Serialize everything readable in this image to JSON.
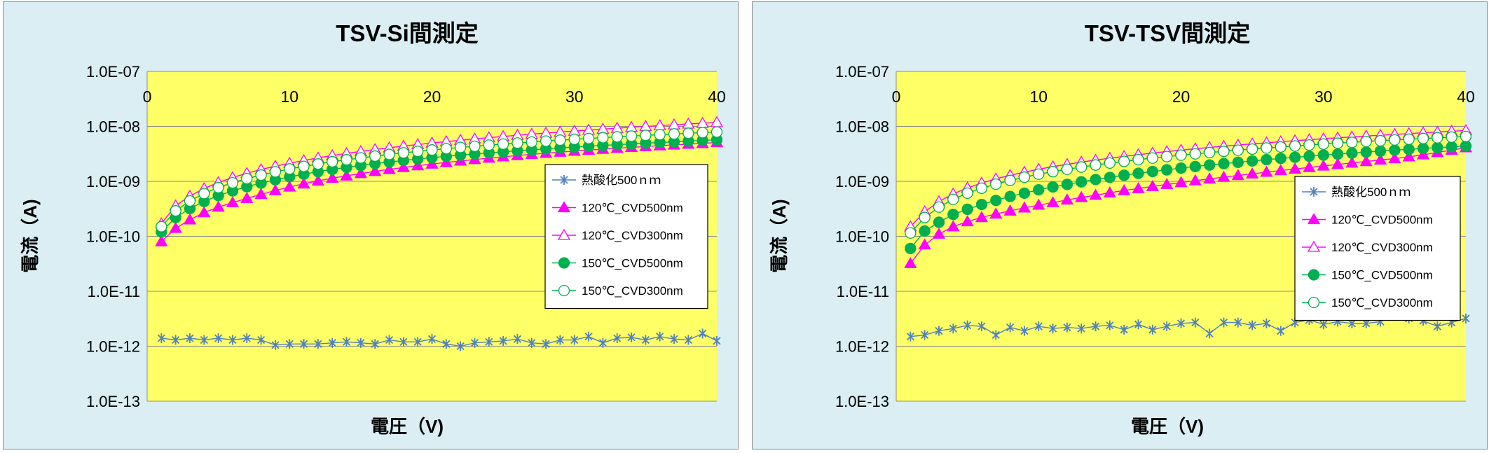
{
  "chart_data": [
    {
      "type": "scatter",
      "title": "TSV-Si間測定",
      "xlabel": "電圧（V)",
      "ylabel": "電流（A)",
      "xlim": [
        0,
        40
      ],
      "x_ticks": [
        "0",
        "10",
        "20",
        "30",
        "40"
      ],
      "ylim": [
        1e-13,
        1e-07
      ],
      "y_scale": "log",
      "y_ticks": [
        "1.0E-07",
        "1.0E-08",
        "1.0E-09",
        "1.0E-10",
        "1.0E-11",
        "1.0E-12",
        "1.0E-13"
      ],
      "grid": "horizontal",
      "legend_position": "right",
      "plot_background": "#ffff66",
      "panel_background": "#daeef3",
      "x": [
        1,
        2,
        3,
        4,
        5,
        6,
        7,
        8,
        9,
        10,
        11,
        12,
        13,
        14,
        15,
        16,
        17,
        18,
        19,
        20,
        21,
        22,
        23,
        24,
        25,
        26,
        27,
        28,
        29,
        30,
        31,
        32,
        33,
        34,
        35,
        36,
        37,
        38,
        39,
        40
      ],
      "series": [
        {
          "name": "熱酸化500ｎｍ",
          "color": "#4f81bd",
          "marker": "asterisk",
          "values": [
            1.4e-12,
            1.3e-12,
            1.4e-12,
            1.3e-12,
            1.4e-12,
            1.3e-12,
            1.4e-12,
            1.3e-12,
            1.05e-12,
            1.1e-12,
            1.1e-12,
            1.1e-12,
            1.15e-12,
            1.2e-12,
            1.15e-12,
            1.1e-12,
            1.3e-12,
            1.2e-12,
            1.2e-12,
            1.35e-12,
            1.1e-12,
            1e-12,
            1.15e-12,
            1.2e-12,
            1.25e-12,
            1.35e-12,
            1.15e-12,
            1.1e-12,
            1.3e-12,
            1.3e-12,
            1.5e-12,
            1.15e-12,
            1.4e-12,
            1.45e-12,
            1.3e-12,
            1.5e-12,
            1.35e-12,
            1.3e-12,
            1.7e-12,
            1.25e-12
          ]
        },
        {
          "name": "120℃_CVD500nm",
          "color": "#ff00ff",
          "marker": "triangle-filled",
          "values": [
            8e-11,
            1.4e-10,
            2e-10,
            2.7e-10,
            3.4e-10,
            4.1e-10,
            4.9e-10,
            5.8e-10,
            6.8e-10,
            7.9e-10,
            9e-10,
            1.02e-09,
            1.14e-09,
            1.26e-09,
            1.39e-09,
            1.52e-09,
            1.65e-09,
            1.79e-09,
            1.93e-09,
            2.07e-09,
            2.21e-09,
            2.35e-09,
            2.5e-09,
            2.65e-09,
            2.8e-09,
            2.95e-09,
            3.1e-09,
            3.25e-09,
            3.4e-09,
            3.55e-09,
            3.7e-09,
            3.85e-09,
            4e-09,
            4.15e-09,
            4.3e-09,
            4.45e-09,
            4.6e-09,
            4.75e-09,
            4.9e-09,
            5.1e-09
          ]
        },
        {
          "name": "120℃_CVD300nm",
          "color": "#ff00ff",
          "marker": "triangle-open",
          "values": [
            1.7e-10,
            3.6e-10,
            5.4e-10,
            7.4e-10,
            9.5e-10,
            1.17e-09,
            1.4e-09,
            1.64e-09,
            1.89e-09,
            2.14e-09,
            2.4e-09,
            2.67e-09,
            2.94e-09,
            3.22e-09,
            3.5e-09,
            3.79e-09,
            4.08e-09,
            4.38e-09,
            4.68e-09,
            4.98e-09,
            5.29e-09,
            5.6e-09,
            5.92e-09,
            6.24e-09,
            6.56e-09,
            6.89e-09,
            7.22e-09,
            7.55e-09,
            7.89e-09,
            8.23e-09,
            8.57e-09,
            8.92e-09,
            9.27e-09,
            9.62e-09,
            9.98e-09,
            1.034e-08,
            1.07e-08,
            1.107e-08,
            1.144e-08,
            1.18e-08
          ]
        },
        {
          "name": "150℃_CVD500nm",
          "color": "#00b050",
          "marker": "circle-filled",
          "values": [
            1.2e-10,
            2.2e-10,
            3.2e-10,
            4.3e-10,
            5.5e-10,
            6.7e-10,
            8e-10,
            9.3e-10,
            1.07e-09,
            1.21e-09,
            1.35e-09,
            1.5e-09,
            1.65e-09,
            1.8e-09,
            1.95e-09,
            2.1e-09,
            2.25e-09,
            2.4e-09,
            2.55e-09,
            2.7e-09,
            2.85e-09,
            3e-09,
            3.15e-09,
            3.3e-09,
            3.45e-09,
            3.6e-09,
            3.75e-09,
            3.9e-09,
            4.05e-09,
            4.2e-09,
            4.35e-09,
            4.5e-09,
            4.65e-09,
            4.8e-09,
            4.95e-09,
            5.1e-09,
            5.25e-09,
            5.4e-09,
            5.55e-09,
            5.7e-09
          ]
        },
        {
          "name": "150℃_CVD300nm",
          "color": "#00b050",
          "marker": "circle-open",
          "values": [
            1.5e-10,
            2.9e-10,
            4.4e-10,
            6e-10,
            7.7e-10,
            9.4e-10,
            1.12e-09,
            1.3e-09,
            1.49e-09,
            1.68e-09,
            1.87e-09,
            2.07e-09,
            2.27e-09,
            2.47e-09,
            2.67e-09,
            2.88e-09,
            3.09e-09,
            3.3e-09,
            3.51e-09,
            3.72e-09,
            3.93e-09,
            4.14e-09,
            4.35e-09,
            4.56e-09,
            4.77e-09,
            4.98e-09,
            5.19e-09,
            5.4e-09,
            5.61e-09,
            5.82e-09,
            6.03e-09,
            6.24e-09,
            6.45e-09,
            6.66e-09,
            6.87e-09,
            7.08e-09,
            7.29e-09,
            7.5e-09,
            7.71e-09,
            7.9e-09
          ]
        }
      ]
    },
    {
      "type": "scatter",
      "title": "TSV-TSV間測定",
      "xlabel": "電圧（V)",
      "ylabel": "電流（A)",
      "xlim": [
        0,
        40
      ],
      "x_ticks": [
        "0",
        "10",
        "20",
        "30",
        "40"
      ],
      "ylim": [
        1e-13,
        1e-07
      ],
      "y_scale": "log",
      "y_ticks": [
        "1.0E-07",
        "1.0E-08",
        "1.0E-09",
        "1.0E-10",
        "1.0E-11",
        "1.0E-12",
        "1.0E-13"
      ],
      "grid": "horizontal",
      "legend_position": "right",
      "plot_background": "#ffff66",
      "panel_background": "#daeef3",
      "x": [
        1,
        2,
        3,
        4,
        5,
        6,
        7,
        8,
        9,
        10,
        11,
        12,
        13,
        14,
        15,
        16,
        17,
        18,
        19,
        20,
        21,
        22,
        23,
        24,
        25,
        26,
        27,
        28,
        29,
        30,
        31,
        32,
        33,
        34,
        35,
        36,
        37,
        38,
        39,
        40
      ],
      "series": [
        {
          "name": "熱酸化500ｎｍ",
          "color": "#4f81bd",
          "marker": "asterisk",
          "values": [
            1.5e-12,
            1.6e-12,
            1.9e-12,
            2.1e-12,
            2.4e-12,
            2.3e-12,
            1.6e-12,
            2.2e-12,
            1.9e-12,
            2.3e-12,
            2.1e-12,
            2.2e-12,
            2.1e-12,
            2.3e-12,
            2.4e-12,
            2e-12,
            2.5e-12,
            2e-12,
            2.3e-12,
            2.6e-12,
            2.7e-12,
            1.7e-12,
            2.7e-12,
            2.7e-12,
            2.4e-12,
            2.6e-12,
            1.9e-12,
            2.7e-12,
            3e-12,
            2.5e-12,
            2.8e-12,
            2.6e-12,
            2.6e-12,
            2.8e-12,
            3.8e-12,
            3.2e-12,
            2.9e-12,
            2.3e-12,
            2.7e-12,
            3.2e-12
          ]
        },
        {
          "name": "120℃_CVD500nm",
          "color": "#ff00ff",
          "marker": "triangle-filled",
          "values": [
            3.2e-11,
            7e-11,
            1.1e-10,
            1.5e-10,
            1.85e-10,
            2.2e-10,
            2.55e-10,
            2.9e-10,
            3.3e-10,
            3.7e-10,
            4.1e-10,
            4.6e-10,
            5.1e-10,
            5.6e-10,
            6.2e-10,
            6.8e-10,
            7.4e-10,
            8.1e-10,
            8.8e-10,
            9.5e-10,
            1.03e-09,
            1.11e-09,
            1.19e-09,
            1.28e-09,
            1.37e-09,
            1.47e-09,
            1.57e-09,
            1.68e-09,
            1.79e-09,
            1.91e-09,
            2.03e-09,
            2.16e-09,
            2.3e-09,
            2.45e-09,
            2.6e-09,
            2.8e-09,
            3.05e-09,
            3.35e-09,
            3.7e-09,
            4.1e-09
          ]
        },
        {
          "name": "120℃_CVD300nm",
          "color": "#ff00ff",
          "marker": "triangle-open",
          "values": [
            1.5e-10,
            2.8e-10,
            4.3e-10,
            5.9e-10,
            7.6e-10,
            9.3e-10,
            1.11e-09,
            1.29e-09,
            1.47e-09,
            1.66e-09,
            1.85e-09,
            2.04e-09,
            2.24e-09,
            2.44e-09,
            2.64e-09,
            2.85e-09,
            3.06e-09,
            3.27e-09,
            3.48e-09,
            3.7e-09,
            3.92e-09,
            4.14e-09,
            4.36e-09,
            4.58e-09,
            4.81e-09,
            5.04e-09,
            5.27e-09,
            5.5e-09,
            5.73e-09,
            5.96e-09,
            6.2e-09,
            6.44e-09,
            6.68e-09,
            6.92e-09,
            7.16e-09,
            7.4e-09,
            7.65e-09,
            7.9e-09,
            8.15e-09,
            8.4e-09
          ]
        },
        {
          "name": "150℃_CVD500nm",
          "color": "#00b050",
          "marker": "circle-filled",
          "values": [
            6e-11,
            1.25e-10,
            1.8e-10,
            2.5e-10,
            3.1e-10,
            3.8e-10,
            4.5e-10,
            5.3e-10,
            6.1e-10,
            7e-10,
            7.9e-10,
            8.8e-10,
            9.8e-10,
            1.08e-09,
            1.18e-09,
            1.29e-09,
            1.4e-09,
            1.51e-09,
            1.62e-09,
            1.74e-09,
            1.86e-09,
            1.98e-09,
            2.1e-09,
            2.22e-09,
            2.35e-09,
            2.48e-09,
            2.61e-09,
            2.74e-09,
            2.87e-09,
            3e-09,
            3.13e-09,
            3.27e-09,
            3.41e-09,
            3.55e-09,
            3.69e-09,
            3.83e-09,
            3.97e-09,
            4.11e-09,
            4.25e-09,
            4.4e-09
          ]
        },
        {
          "name": "150℃_CVD300nm",
          "color": "#00b050",
          "marker": "circle-open",
          "values": [
            1.15e-10,
            2.2e-10,
            3.4e-10,
            4.7e-10,
            6.1e-10,
            7.5e-10,
            8.9e-10,
            1.04e-09,
            1.19e-09,
            1.35e-09,
            1.5e-09,
            1.66e-09,
            1.82e-09,
            1.98e-09,
            2.15e-09,
            2.31e-09,
            2.48e-09,
            2.65e-09,
            2.82e-09,
            2.99e-09,
            3.16e-09,
            3.34e-09,
            3.51e-09,
            3.69e-09,
            3.86e-09,
            4.04e-09,
            4.22e-09,
            4.4e-09,
            4.58e-09,
            4.76e-09,
            4.94e-09,
            5.12e-09,
            5.3e-09,
            5.48e-09,
            5.66e-09,
            5.84e-09,
            6.02e-09,
            6.2e-09,
            6.38e-09,
            6.56e-09
          ]
        }
      ]
    }
  ]
}
